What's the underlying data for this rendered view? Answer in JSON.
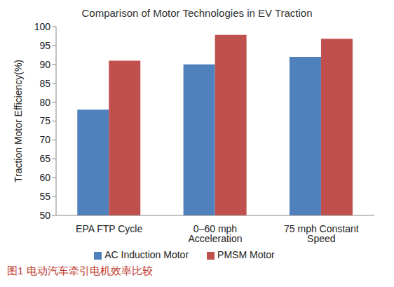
{
  "chart_data": {
    "type": "bar",
    "title": "Comparison of Motor Technologies in EV Traction",
    "y_label": "Traction Motor Efficiency(%)",
    "caption": "图1   电动汽车牵引电机效率比较",
    "categories": [
      "EPA FTP Cycle",
      "0–60 mph Acceleration",
      "75 mph Constant Speed"
    ],
    "series": [
      {
        "name": "AC Induction Motor",
        "color": "#4f81bd",
        "values": [
          78,
          90,
          92
        ]
      },
      {
        "name": "PMSM Motor",
        "color": "#c0504d",
        "values": [
          91,
          97.8,
          96.8
        ]
      }
    ],
    "ylim": [
      50,
      100
    ],
    "yticks": [
      50,
      55,
      60,
      65,
      70,
      75,
      80,
      85,
      90,
      95,
      100
    ],
    "grid": false,
    "legend": "bottom"
  }
}
